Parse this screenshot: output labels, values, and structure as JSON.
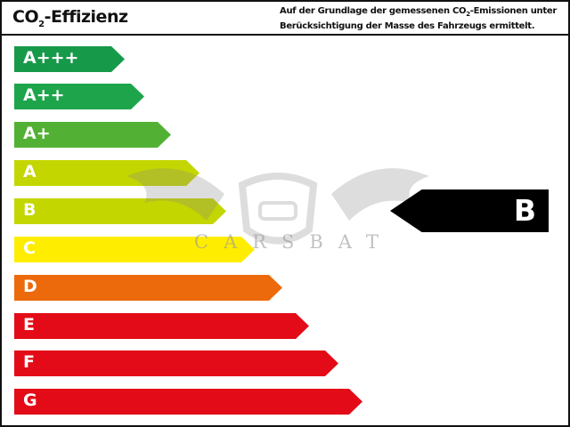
{
  "header": {
    "title_pre": "CO",
    "title_sub": "2",
    "title_post": "-Effizienz",
    "note_line1_pre": "Auf der Grundlage der gemessenen CO",
    "note_line1_sub": "2",
    "note_line1_post": "-Emissionen unter",
    "note_line2": "Berücksichtigung der Masse des Fahrzeugs ermittelt."
  },
  "classes": [
    {
      "label": "A+++",
      "color": "#17994a"
    },
    {
      "label": "A++",
      "color": "#1ea54b"
    },
    {
      "label": "A+",
      "color": "#52b134"
    },
    {
      "label": "A",
      "color": "#c3d600"
    },
    {
      "label": "B",
      "color": "#c3d600"
    },
    {
      "label": "C",
      "color": "#ffed00"
    },
    {
      "label": "D",
      "color": "#ec6a0b"
    },
    {
      "label": "E",
      "color": "#e30b17"
    },
    {
      "label": "F",
      "color": "#e30b17"
    },
    {
      "label": "G",
      "color": "#e30b17"
    }
  ],
  "rating": {
    "label": "B",
    "color": "#000000"
  },
  "watermark": {
    "text": "CARSBAT"
  }
}
